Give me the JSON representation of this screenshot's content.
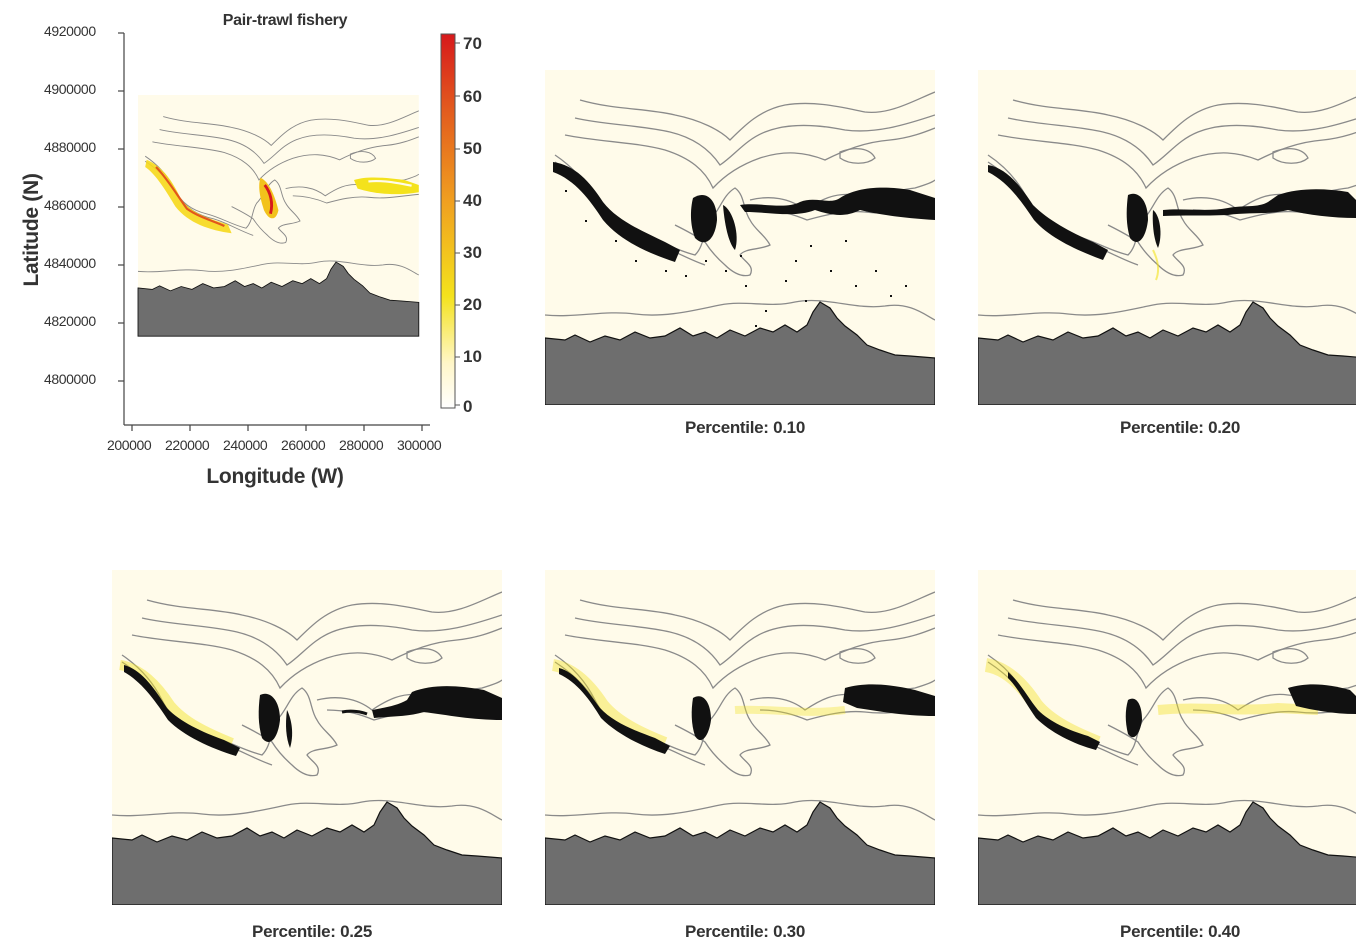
{
  "main_panel": {
    "title": "Pair-trawl fishery",
    "ylabel": "Latitude (N)",
    "xlabel": "Longitude (W)",
    "y_ticks": [
      "4920000",
      "4900000",
      "4880000",
      "4860000",
      "4840000",
      "4820000",
      "4800000"
    ],
    "x_ticks": [
      "200000",
      "220000",
      "240000",
      "260000",
      "280000",
      "300000"
    ],
    "colorbar_ticks": [
      "70",
      "60",
      "50",
      "40",
      "30",
      "20",
      "10",
      "0"
    ]
  },
  "panels": [
    {
      "label": "Percentile: 0.10"
    },
    {
      "label": "Percentile: 0.20"
    },
    {
      "label": "Percentile: 0.25"
    },
    {
      "label": "Percentile: 0.30"
    },
    {
      "label": "Percentile: 0.40"
    }
  ],
  "colors": {
    "sea": "#fffbea",
    "land": "#6e6e6e",
    "contour": "#8a8a8a",
    "hotspot": "#111111",
    "colorbar_high": "#d7191c",
    "colorbar_mid": "#f2e21c",
    "colorbar_low": "#ffffff"
  }
}
